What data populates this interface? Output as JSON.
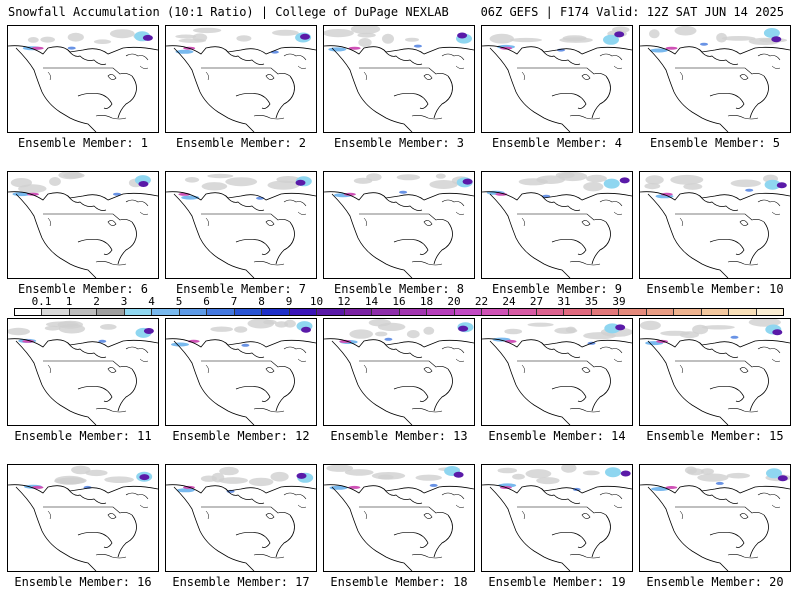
{
  "header": {
    "left": "Snowfall Accumulation (10:1 Ratio) | College of DuPage NEXLAB",
    "right": "06Z GEFS | F174 Valid: 12Z SAT JUN 14 2025"
  },
  "members": [
    "Ensemble Member: 1",
    "Ensemble Member: 2",
    "Ensemble Member: 3",
    "Ensemble Member: 4",
    "Ensemble Member: 5",
    "Ensemble Member: 6",
    "Ensemble Member: 7",
    "Ensemble Member: 8",
    "Ensemble Member: 9",
    "Ensemble Member: 10",
    "Ensemble Member: 11",
    "Ensemble Member: 12",
    "Ensemble Member: 13",
    "Ensemble Member: 14",
    "Ensemble Member: 15",
    "Ensemble Member: 16",
    "Ensemble Member: 17",
    "Ensemble Member: 18",
    "Ensemble Member: 19",
    "Ensemble Member: 20"
  ],
  "colorbar": {
    "ticks": [
      "0.1",
      "1",
      "2",
      "3",
      "4",
      "5",
      "6",
      "7",
      "8",
      "9",
      "10",
      "12",
      "14",
      "16",
      "18",
      "20",
      "22",
      "24",
      "27",
      "31",
      "35",
      "39"
    ],
    "colors": [
      "#ffffff",
      "#d9d9d9",
      "#bdbdbd",
      "#9e9e9e",
      "#8fd6f0",
      "#79b9ee",
      "#5d9ae6",
      "#4478df",
      "#2a55d4",
      "#1e2fc8",
      "#3a14b8",
      "#5a1aa8",
      "#7a22a3",
      "#8e2eaa",
      "#a236b0",
      "#b63ebb",
      "#c24ac4",
      "#cf52b6",
      "#d65aa4",
      "#dc628f",
      "#e06a7f",
      "#e2787a",
      "#e48a7c",
      "#e99d84",
      "#eeb38f",
      "#f3c89f",
      "#f8dfb8",
      "#fbeed4"
    ]
  }
}
